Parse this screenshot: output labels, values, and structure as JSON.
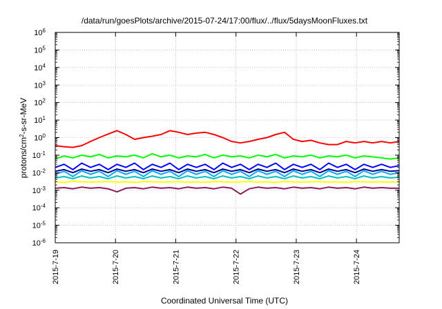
{
  "chart_data": {
    "type": "line",
    "title": "/data/run/goesPlots/archive/2015-07-24/17:00/flux/../flux/5daysMoonFluxes.txt",
    "xlabel": "Coordinated Universal Time (UTC)",
    "ylabel_main": "protons/cm",
    "ylabel_sup": "2",
    "ylabel_rest": "-s-sr-MeV",
    "yscale": "log",
    "ylim_exponents": [
      -6,
      6
    ],
    "xlim": [
      "2015-07-19T00:00",
      "2015-07-24T17:00"
    ],
    "x_tick_labels": [
      "2015-7-19",
      "2015-7-20",
      "2015-7-21",
      "2015-7-22",
      "2015-7-23",
      "2015-7-24"
    ],
    "y_tick_exponents": [
      -6,
      -5,
      -4,
      -3,
      -2,
      -1,
      0,
      1,
      2,
      3,
      4,
      5,
      6
    ],
    "y_tick_base": "10",
    "grid": true,
    "legend": "none",
    "series": [
      {
        "color": "#ff0000",
        "values": [
          0.35,
          0.3,
          0.28,
          0.35,
          0.6,
          1.0,
          1.6,
          2.5,
          1.5,
          0.8,
          1.0,
          1.2,
          1.5,
          2.5,
          2.0,
          1.5,
          1.8,
          2.0,
          1.5,
          1.0,
          0.6,
          0.5,
          0.6,
          0.8,
          1.0,
          1.5,
          2.0,
          0.8,
          0.6,
          0.7,
          0.5,
          0.4,
          0.4,
          0.6,
          0.5,
          0.6,
          0.5,
          0.6,
          0.5,
          0.6
        ]
      },
      {
        "color": "#00ff00",
        "values": [
          0.06,
          0.09,
          0.07,
          0.1,
          0.08,
          0.11,
          0.07,
          0.09,
          0.08,
          0.1,
          0.07,
          0.12,
          0.08,
          0.1,
          0.07,
          0.09,
          0.08,
          0.11,
          0.07,
          0.1,
          0.08,
          0.09,
          0.07,
          0.1,
          0.08,
          0.11,
          0.07,
          0.09,
          0.08,
          0.1,
          0.07,
          0.09,
          0.08,
          0.1,
          0.07,
          0.09,
          0.08,
          0.07,
          0.06,
          0.07
        ]
      },
      {
        "color": "#0000ff",
        "values": [
          0.02,
          0.03,
          0.015,
          0.035,
          0.02,
          0.03,
          0.015,
          0.03,
          0.02,
          0.035,
          0.015,
          0.03,
          0.02,
          0.035,
          0.015,
          0.03,
          0.02,
          0.03,
          0.015,
          0.035,
          0.02,
          0.03,
          0.015,
          0.03,
          0.02,
          0.035,
          0.015,
          0.03,
          0.02,
          0.03,
          0.015,
          0.035,
          0.02,
          0.03,
          0.015,
          0.03,
          0.02,
          0.03,
          0.02,
          0.025
        ]
      },
      {
        "color": "#000088",
        "values": [
          0.012,
          0.015,
          0.01,
          0.016,
          0.012,
          0.015,
          0.01,
          0.016,
          0.012,
          0.015,
          0.01,
          0.016,
          0.012,
          0.015,
          0.01,
          0.016,
          0.012,
          0.015,
          0.01,
          0.016,
          0.012,
          0.015,
          0.01,
          0.016,
          0.012,
          0.015,
          0.01,
          0.016,
          0.012,
          0.015,
          0.01,
          0.016,
          0.012,
          0.015,
          0.01,
          0.016,
          0.012,
          0.015,
          0.012,
          0.013
        ]
      },
      {
        "color": "#00aaff",
        "values": [
          0.008,
          0.012,
          0.006,
          0.013,
          0.008,
          0.012,
          0.006,
          0.013,
          0.008,
          0.012,
          0.006,
          0.013,
          0.008,
          0.012,
          0.006,
          0.013,
          0.008,
          0.012,
          0.006,
          0.013,
          0.008,
          0.012,
          0.006,
          0.013,
          0.008,
          0.012,
          0.006,
          0.013,
          0.008,
          0.012,
          0.006,
          0.013,
          0.008,
          0.012,
          0.006,
          0.013,
          0.008,
          0.012,
          0.008,
          0.01
        ]
      },
      {
        "color": "#00bfbf",
        "values": [
          0.005,
          0.006,
          0.0045,
          0.0065,
          0.005,
          0.006,
          0.0045,
          0.0065,
          0.005,
          0.006,
          0.0045,
          0.0065,
          0.005,
          0.006,
          0.0045,
          0.0065,
          0.005,
          0.006,
          0.0045,
          0.0065,
          0.005,
          0.006,
          0.0045,
          0.0065,
          0.005,
          0.006,
          0.0045,
          0.0065,
          0.005,
          0.006,
          0.0045,
          0.0065,
          0.005,
          0.006,
          0.0045,
          0.0065,
          0.005,
          0.006,
          0.005,
          0.0055
        ]
      },
      {
        "color": "#ffff00",
        "values": [
          0.003,
          0.0028,
          0.0032,
          0.003,
          0.0029,
          0.003,
          0.0031,
          0.0029,
          0.003,
          0.0028,
          0.0031,
          0.003,
          0.0029,
          0.003,
          0.0031,
          0.0029,
          0.003,
          0.0028,
          0.0031,
          0.003,
          0.0029,
          0.003,
          0.0031,
          0.0029,
          0.003,
          0.0028,
          0.0031,
          0.003,
          0.0029,
          0.003,
          0.0031,
          0.0029,
          0.003,
          0.0028,
          0.0031,
          0.003,
          0.0029,
          0.003,
          0.0029,
          0.003
        ]
      },
      {
        "color": "#8b1a5a",
        "values": [
          0.0013,
          0.0014,
          0.0012,
          0.0015,
          0.0013,
          0.0014,
          0.0012,
          0.0008,
          0.0013,
          0.0014,
          0.0012,
          0.0015,
          0.0013,
          0.0014,
          0.0012,
          0.0015,
          0.0013,
          0.0014,
          0.0012,
          0.0015,
          0.0013,
          0.0006,
          0.0012,
          0.0015,
          0.0013,
          0.0014,
          0.0012,
          0.0015,
          0.0013,
          0.0014,
          0.0012,
          0.0015,
          0.0013,
          0.0014,
          0.0012,
          0.0015,
          0.0013,
          0.0014,
          0.0013,
          0.0013
        ]
      }
    ]
  }
}
